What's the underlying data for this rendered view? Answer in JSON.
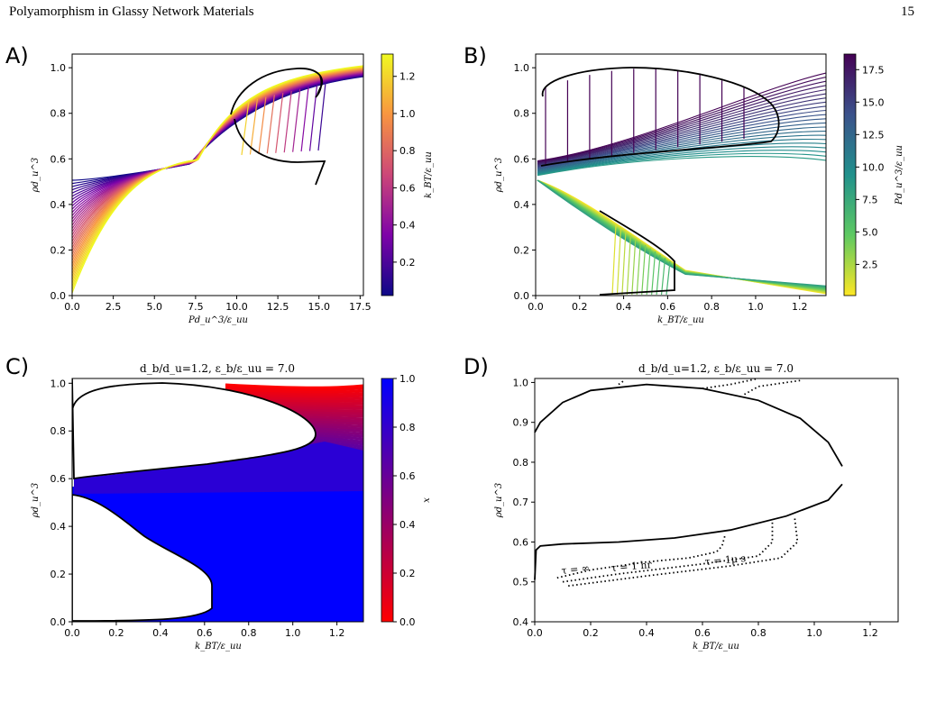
{
  "page": {
    "running_title": "Polyamorphism in Glassy Network Materials",
    "page_number": "15"
  },
  "panels": [
    "A)",
    "B)",
    "C)",
    "D)"
  ],
  "chart_data": [
    {
      "panel": "A)",
      "type": "line",
      "xlabel": "Pd_u^3/ε_uu",
      "ylabel": "ρd_u^3",
      "xlim": [
        0,
        17.7
      ],
      "ylim": [
        0,
        1.06
      ],
      "xticks": [
        "0.0",
        "2.5",
        "5.0",
        "7.5",
        "10.0",
        "12.5",
        "15.0",
        "17.5"
      ],
      "yticks": [
        "0.0",
        "0.2",
        "0.4",
        "0.6",
        "0.8",
        "1.0"
      ],
      "colorbar": {
        "label": "k_BT/ε_uu",
        "colormap": "plasma",
        "range": [
          0.02,
          1.32
        ],
        "ticks": [
          "0.2",
          "0.4",
          "0.6",
          "0.8",
          "1.0",
          "1.2"
        ]
      },
      "series_description": "isotherms of density vs pressure, colored by temperature; black line is the liquid-liquid coexistence/spinodal loop"
    },
    {
      "panel": "B)",
      "type": "line",
      "xlabel": "k_BT/ε_uu",
      "ylabel": "ρd_u^3",
      "xlim": [
        0,
        1.32
      ],
      "ylim": [
        0,
        1.06
      ],
      "xticks": [
        "0.0",
        "0.2",
        "0.4",
        "0.6",
        "0.8",
        "1.0",
        "1.2"
      ],
      "yticks": [
        "0.0",
        "0.2",
        "0.4",
        "0.6",
        "0.8",
        "1.0"
      ],
      "colorbar": {
        "label": "Pd_u^3/ε_uu",
        "colormap": "viridis_r",
        "range": [
          0.1,
          18.7
        ],
        "ticks": [
          "2.5",
          "5.0",
          "7.5",
          "10.0",
          "12.5",
          "15.0",
          "17.5"
        ]
      },
      "series_description": "isobars of density vs temperature, colored by pressure"
    },
    {
      "panel": "C)",
      "type": "line",
      "title": "d_b/d_u=1.2, ε_b/ε_uu = 7.0",
      "xlabel": "k_BT/ε_uu",
      "ylabel": "ρd_u^3",
      "xlim": [
        0,
        1.32
      ],
      "ylim": [
        0,
        1.02
      ],
      "xticks": [
        "0.0",
        "0.2",
        "0.4",
        "0.6",
        "0.8",
        "1.0",
        "1.2"
      ],
      "yticks": [
        "0.0",
        "0.2",
        "0.4",
        "0.6",
        "0.8",
        "1.0"
      ],
      "colorbar": {
        "label": "x",
        "colormap": "bwr_r",
        "range": [
          0.0,
          1.0
        ],
        "ticks": [
          "0.0",
          "0.2",
          "0.4",
          "0.6",
          "0.8",
          "1.0"
        ]
      },
      "series_description": "isobars colored by bonded fraction x; black outlines are phase boundaries"
    },
    {
      "panel": "D)",
      "type": "line",
      "title": "d_b/d_u=1.2, ε_b/ε_uu = 7.0",
      "xlabel": "k_BT/ε_uu",
      "ylabel": "ρd_u^3",
      "xlim": [
        0,
        1.3
      ],
      "ylim": [
        0.4,
        1.01
      ],
      "xticks": [
        "0.0",
        "0.2",
        "0.4",
        "0.6",
        "0.8",
        "1.0",
        "1.2"
      ],
      "yticks": [
        "0.4",
        "0.5",
        "0.6",
        "0.7",
        "0.8",
        "0.9",
        "1.0"
      ],
      "annotations": [
        "τ = ∞",
        "τ = 1 hr",
        "τ = 1μ s"
      ],
      "series": [
        {
          "style": "solid",
          "points": [
            [
              0.0,
              0.505
            ],
            [
              0.005,
              0.58
            ],
            [
              0.02,
              0.59
            ],
            [
              0.1,
              0.595
            ],
            [
              0.3,
              0.6
            ],
            [
              0.5,
              0.61
            ],
            [
              0.7,
              0.63
            ],
            [
              0.9,
              0.665
            ],
            [
              1.05,
              0.705
            ],
            [
              1.1,
              0.745
            ]
          ]
        },
        {
          "style": "solid",
          "points": [
            [
              0.0,
              0.875
            ],
            [
              0.02,
              0.9
            ],
            [
              0.1,
              0.95
            ],
            [
              0.2,
              0.98
            ],
            [
              0.4,
              0.995
            ],
            [
              0.6,
              0.985
            ],
            [
              0.8,
              0.955
            ],
            [
              0.95,
              0.91
            ],
            [
              1.05,
              0.85
            ],
            [
              1.1,
              0.79
            ]
          ]
        },
        {
          "style": "dotted",
          "points": [
            [
              0.08,
              0.51
            ],
            [
              0.2,
              0.53
            ],
            [
              0.4,
              0.55
            ],
            [
              0.55,
              0.56
            ],
            [
              0.65,
              0.575
            ],
            [
              0.67,
              0.59
            ],
            [
              0.68,
              0.615
            ]
          ]
        },
        {
          "style": "dotted",
          "points": [
            [
              0.1,
              0.5
            ],
            [
              0.3,
              0.52
            ],
            [
              0.6,
              0.545
            ],
            [
              0.8,
              0.565
            ],
            [
              0.85,
              0.6
            ],
            [
              0.85,
              0.65
            ]
          ]
        },
        {
          "style": "dotted",
          "points": [
            [
              0.12,
              0.49
            ],
            [
              0.4,
              0.515
            ],
            [
              0.7,
              0.54
            ],
            [
              0.88,
              0.56
            ],
            [
              0.94,
              0.6
            ],
            [
              0.93,
              0.66
            ]
          ]
        },
        {
          "style": "dotted",
          "points": [
            [
              0.3,
              0.995
            ],
            [
              0.32,
              1.005
            ]
          ]
        },
        {
          "style": "dotted",
          "points": [
            [
              0.6,
              0.985
            ],
            [
              0.7,
              0.995
            ],
            [
              0.8,
              1.01
            ]
          ]
        },
        {
          "style": "dotted",
          "points": [
            [
              0.75,
              0.97
            ],
            [
              0.8,
              0.99
            ],
            [
              0.95,
              1.005
            ]
          ]
        }
      ]
    }
  ]
}
